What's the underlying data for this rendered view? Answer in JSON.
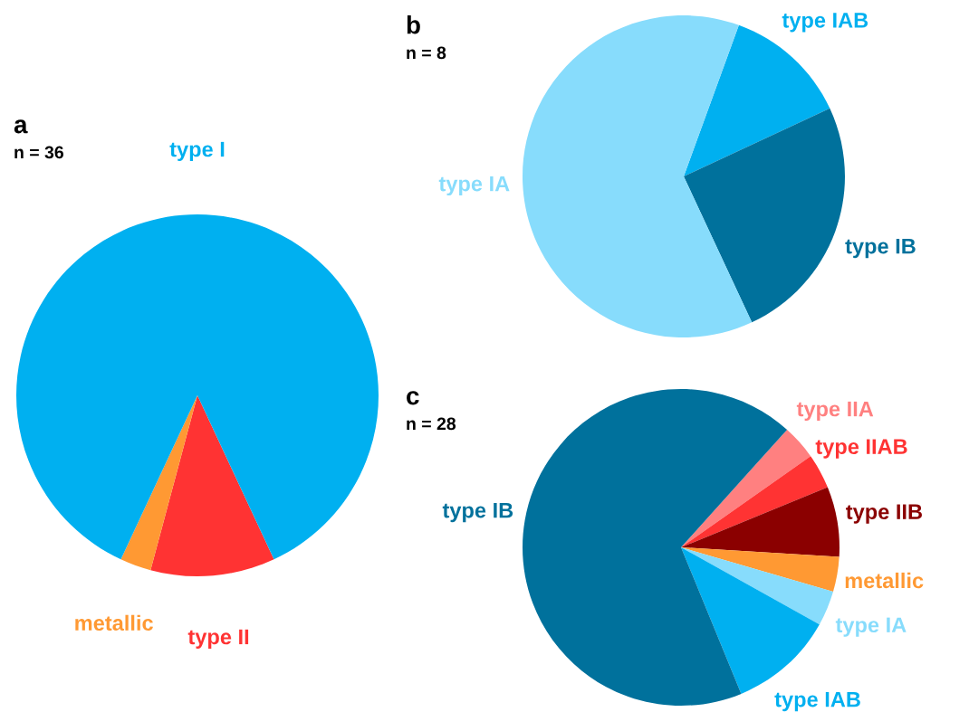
{
  "chart_data": [
    {
      "type": "pie",
      "title": "a",
      "subtitle": "n = 36",
      "categories": [
        "type II",
        "metallic",
        "type I"
      ],
      "values": [
        11.11,
        2.78,
        86.11
      ],
      "colors": [
        "#ff3333",
        "#ff9933",
        "#00b0f0"
      ]
    },
    {
      "type": "pie",
      "title": "b",
      "subtitle": "n = 8",
      "categories": [
        "type IAB",
        "type IB",
        "type IA"
      ],
      "values": [
        12.5,
        25,
        62.5
      ],
      "colors": [
        "#00b0f0",
        "#00719c",
        "#87dcfc"
      ]
    },
    {
      "type": "pie",
      "title": "c",
      "subtitle": "n = 28",
      "categories": [
        "type IIA",
        "type IIAB",
        "type IIB",
        "metallic",
        "type IA",
        "type IAB",
        "type IB"
      ],
      "values": [
        3.57,
        3.57,
        7.14,
        3.57,
        3.57,
        10.71,
        67.86
      ],
      "colors": [
        "#ff8080",
        "#ff3333",
        "#8b0000",
        "#ff9933",
        "#87dcfc",
        "#00b0f0",
        "#00719c"
      ]
    }
  ]
}
